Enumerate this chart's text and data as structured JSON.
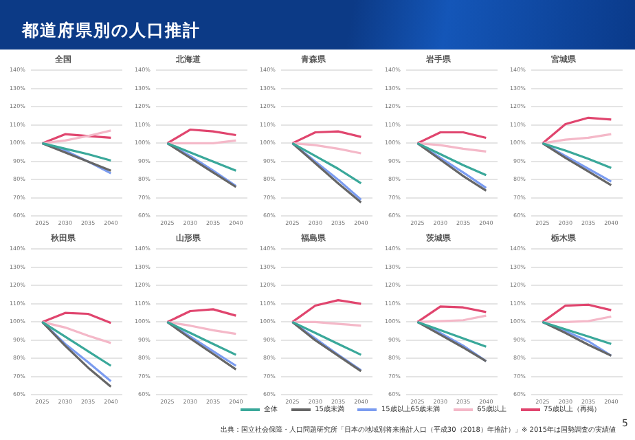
{
  "chart_data": [
    {
      "type": "line",
      "title": "全国",
      "annotations": [
        "都道府県別の人口推計",
        "出典：国立社会保障・人口問題研究所「日本の地域別将来推計人口（平成30（2018）年推計）」※ 2015年は国勢調査の実績値",
        "5"
      ],
      "legend": "bottom",
      "grid": "y",
      "marker": "none",
      "categories": [
        "2025",
        "2030",
        "2035",
        "2040"
      ],
      "ylim": [
        60,
        140
      ],
      "yticks": [
        {
          "value": 60,
          "label": "60%"
        },
        {
          "value": 70,
          "label": "70%"
        },
        {
          "value": 80,
          "label": "80%"
        },
        {
          "value": 90,
          "label": "90%"
        },
        {
          "value": 100,
          "label": "100%"
        },
        {
          "value": 110,
          "label": "110%"
        },
        {
          "value": 120,
          "label": "120%"
        },
        {
          "value": 130,
          "label": "130%"
        },
        {
          "value": 140,
          "label": "140%"
        }
      ],
      "series": [
        {
          "name": "全体",
          "color": "#3aa89a",
          "values": [
            100,
            97,
            94,
            90.5
          ]
        },
        {
          "name": "15歳未満",
          "color": "#666666",
          "values": [
            100,
            95,
            90,
            85
          ]
        },
        {
          "name": "15歳以上65歳未満",
          "color": "#7b9cf0",
          "values": [
            100,
            96,
            90,
            83.5
          ]
        },
        {
          "name": "65歳以上",
          "color": "#f4b8c8",
          "values": [
            100,
            101.5,
            104,
            107
          ]
        },
        {
          "name": "75歳以上（再掲）",
          "color": "#e0456e",
          "values": [
            100,
            105,
            104,
            103
          ]
        }
      ]
    },
    {
      "type": "line",
      "title": "北海道",
      "grid": "y",
      "marker": "none",
      "categories": [
        "2025",
        "2030",
        "2035",
        "2040"
      ],
      "ylim": [
        60,
        140
      ],
      "yticks": [
        {
          "value": 60,
          "label": "60%"
        },
        {
          "value": 70,
          "label": "70%"
        },
        {
          "value": 80,
          "label": "80%"
        },
        {
          "value": 90,
          "label": "90%"
        },
        {
          "value": 100,
          "label": "100%"
        },
        {
          "value": 110,
          "label": "110%"
        },
        {
          "value": 120,
          "label": "120%"
        },
        {
          "value": 130,
          "label": "130%"
        },
        {
          "value": 140,
          "label": "140%"
        }
      ],
      "series": [
        {
          "color": "#3aa89a",
          "values": [
            100,
            95,
            90,
            85
          ]
        },
        {
          "color": "#666666",
          "values": [
            100,
            92,
            84,
            76
          ]
        },
        {
          "color": "#7b9cf0",
          "values": [
            100,
            93,
            85,
            76.5
          ]
        },
        {
          "color": "#f4b8c8",
          "values": [
            100,
            100,
            100,
            101.5
          ]
        },
        {
          "color": "#e0456e",
          "values": [
            100,
            107.5,
            106.5,
            104.5
          ]
        }
      ]
    },
    {
      "type": "line",
      "title": "青森県",
      "grid": "y",
      "marker": "none",
      "categories": [
        "2025",
        "2030",
        "2035",
        "2040"
      ],
      "ylim": [
        60,
        140
      ],
      "yticks": [
        {
          "value": 60,
          "label": "60%"
        },
        {
          "value": 70,
          "label": "70%"
        },
        {
          "value": 80,
          "label": "80%"
        },
        {
          "value": 90,
          "label": "90%"
        },
        {
          "value": 100,
          "label": "100%"
        },
        {
          "value": 110,
          "label": "110%"
        },
        {
          "value": 120,
          "label": "120%"
        },
        {
          "value": 130,
          "label": "130%"
        },
        {
          "value": 140,
          "label": "140%"
        }
      ],
      "series": [
        {
          "color": "#3aa89a",
          "values": [
            100,
            93,
            86,
            78
          ]
        },
        {
          "color": "#666666",
          "values": [
            100,
            89,
            78,
            67.5
          ]
        },
        {
          "color": "#7b9cf0",
          "values": [
            100,
            90,
            80,
            69
          ]
        },
        {
          "color": "#f4b8c8",
          "values": [
            100,
            99,
            97,
            94.5
          ]
        },
        {
          "color": "#e0456e",
          "values": [
            100,
            106,
            106.5,
            103.5
          ]
        }
      ]
    },
    {
      "type": "line",
      "title": "岩手県",
      "grid": "y",
      "marker": "none",
      "categories": [
        "2025",
        "2030",
        "2035",
        "2040"
      ],
      "ylim": [
        60,
        140
      ],
      "yticks": [
        {
          "value": 60,
          "label": "60%"
        },
        {
          "value": 70,
          "label": "70%"
        },
        {
          "value": 80,
          "label": "80%"
        },
        {
          "value": 90,
          "label": "90%"
        },
        {
          "value": 100,
          "label": "100%"
        },
        {
          "value": 110,
          "label": "110%"
        },
        {
          "value": 120,
          "label": "120%"
        },
        {
          "value": 130,
          "label": "130%"
        },
        {
          "value": 140,
          "label": "140%"
        }
      ],
      "series": [
        {
          "color": "#3aa89a",
          "values": [
            100,
            94,
            88,
            82.5
          ]
        },
        {
          "color": "#666666",
          "values": [
            100,
            91,
            82,
            74
          ]
        },
        {
          "color": "#7b9cf0",
          "values": [
            100,
            92,
            84,
            75.5
          ]
        },
        {
          "color": "#f4b8c8",
          "values": [
            100,
            99,
            97,
            95.5
          ]
        },
        {
          "color": "#e0456e",
          "values": [
            100,
            106,
            106,
            103
          ]
        }
      ]
    },
    {
      "type": "line",
      "title": "宮城県",
      "grid": "y",
      "marker": "none",
      "categories": [
        "2025",
        "2030",
        "2035",
        "2040"
      ],
      "ylim": [
        60,
        140
      ],
      "yticks": [
        {
          "value": 60,
          "label": "60%"
        },
        {
          "value": 70,
          "label": "70%"
        },
        {
          "value": 80,
          "label": "80%"
        },
        {
          "value": 90,
          "label": "90%"
        },
        {
          "value": 100,
          "label": "100%"
        },
        {
          "value": 110,
          "label": "110%"
        },
        {
          "value": 120,
          "label": "120%"
        },
        {
          "value": 130,
          "label": "130%"
        },
        {
          "value": 140,
          "label": "140%"
        }
      ],
      "series": [
        {
          "color": "#3aa89a",
          "values": [
            100,
            96,
            91.5,
            86.5
          ]
        },
        {
          "color": "#666666",
          "values": [
            100,
            92,
            84.5,
            77
          ]
        },
        {
          "color": "#7b9cf0",
          "values": [
            100,
            93,
            86,
            79
          ]
        },
        {
          "color": "#f4b8c8",
          "values": [
            100,
            102,
            103,
            105
          ]
        },
        {
          "color": "#e0456e",
          "values": [
            100,
            110.5,
            114,
            113
          ]
        }
      ]
    },
    {
      "type": "line",
      "title": "秋田県",
      "grid": "y",
      "marker": "none",
      "categories": [
        "2025",
        "2030",
        "2035",
        "2040"
      ],
      "ylim": [
        60,
        140
      ],
      "yticks": [
        {
          "value": 60,
          "label": "60%"
        },
        {
          "value": 70,
          "label": "70%"
        },
        {
          "value": 80,
          "label": "80%"
        },
        {
          "value": 90,
          "label": "90%"
        },
        {
          "value": 100,
          "label": "100%"
        },
        {
          "value": 110,
          "label": "110%"
        },
        {
          "value": 120,
          "label": "120%"
        },
        {
          "value": 130,
          "label": "130%"
        },
        {
          "value": 140,
          "label": "140%"
        }
      ],
      "series": [
        {
          "color": "#3aa89a",
          "values": [
            100,
            92,
            84,
            76
          ]
        },
        {
          "color": "#666666",
          "values": [
            100,
            87,
            75,
            64.5
          ]
        },
        {
          "color": "#7b9cf0",
          "values": [
            100,
            88,
            78,
            67.5
          ]
        },
        {
          "color": "#f4b8c8",
          "values": [
            100,
            97,
            92.5,
            88.5
          ]
        },
        {
          "color": "#e0456e",
          "values": [
            100,
            105,
            104.5,
            99.5
          ]
        }
      ]
    },
    {
      "type": "line",
      "title": "山形県",
      "grid": "y",
      "marker": "none",
      "categories": [
        "2025",
        "2030",
        "2035",
        "2040"
      ],
      "ylim": [
        60,
        140
      ],
      "yticks": [
        {
          "value": 60,
          "label": "60%"
        },
        {
          "value": 70,
          "label": "70%"
        },
        {
          "value": 80,
          "label": "80%"
        },
        {
          "value": 90,
          "label": "90%"
        },
        {
          "value": 100,
          "label": "100%"
        },
        {
          "value": 110,
          "label": "110%"
        },
        {
          "value": 120,
          "label": "120%"
        },
        {
          "value": 130,
          "label": "130%"
        },
        {
          "value": 140,
          "label": "140%"
        }
      ],
      "series": [
        {
          "color": "#3aa89a",
          "values": [
            100,
            94,
            88,
            82
          ]
        },
        {
          "color": "#666666",
          "values": [
            100,
            91,
            82.5,
            74
          ]
        },
        {
          "color": "#7b9cf0",
          "values": [
            100,
            92,
            84,
            76
          ]
        },
        {
          "color": "#f4b8c8",
          "values": [
            100,
            98,
            95.5,
            93.5
          ]
        },
        {
          "color": "#e0456e",
          "values": [
            100,
            106,
            107,
            103.5
          ]
        }
      ]
    },
    {
      "type": "line",
      "title": "福島県",
      "grid": "y",
      "marker": "none",
      "categories": [
        "2025",
        "2030",
        "2035",
        "2040"
      ],
      "ylim": [
        60,
        140
      ],
      "yticks": [
        {
          "value": 60,
          "label": "60%"
        },
        {
          "value": 70,
          "label": "70%"
        },
        {
          "value": 80,
          "label": "80%"
        },
        {
          "value": 90,
          "label": "90%"
        },
        {
          "value": 100,
          "label": "100%"
        },
        {
          "value": 110,
          "label": "110%"
        },
        {
          "value": 120,
          "label": "120%"
        },
        {
          "value": 130,
          "label": "130%"
        },
        {
          "value": 140,
          "label": "140%"
        }
      ],
      "series": [
        {
          "color": "#3aa89a",
          "values": [
            100,
            94,
            88,
            82
          ]
        },
        {
          "color": "#666666",
          "values": [
            100,
            90,
            81.5,
            73
          ]
        },
        {
          "color": "#7b9cf0",
          "values": [
            100,
            91,
            82,
            73.5
          ]
        },
        {
          "color": "#f4b8c8",
          "values": [
            100,
            100,
            99,
            98
          ]
        },
        {
          "color": "#e0456e",
          "values": [
            100,
            109,
            112,
            110
          ]
        }
      ]
    },
    {
      "type": "line",
      "title": "茨城県",
      "grid": "y",
      "marker": "none",
      "categories": [
        "2025",
        "2030",
        "2035",
        "2040"
      ],
      "ylim": [
        60,
        140
      ],
      "yticks": [
        {
          "value": 60,
          "label": "60%"
        },
        {
          "value": 70,
          "label": "70%"
        },
        {
          "value": 80,
          "label": "80%"
        },
        {
          "value": 90,
          "label": "90%"
        },
        {
          "value": 100,
          "label": "100%"
        },
        {
          "value": 110,
          "label": "110%"
        },
        {
          "value": 120,
          "label": "120%"
        },
        {
          "value": 130,
          "label": "130%"
        },
        {
          "value": 140,
          "label": "140%"
        }
      ],
      "series": [
        {
          "color": "#3aa89a",
          "values": [
            100,
            95.5,
            91,
            86.5
          ]
        },
        {
          "color": "#666666",
          "values": [
            100,
            93,
            86,
            78.5
          ]
        },
        {
          "color": "#7b9cf0",
          "values": [
            100,
            94,
            87,
            78.5
          ]
        },
        {
          "color": "#f4b8c8",
          "values": [
            100,
            100.5,
            101,
            103.5
          ]
        },
        {
          "color": "#e0456e",
          "values": [
            100,
            108.5,
            108,
            105.5
          ]
        }
      ]
    },
    {
      "type": "line",
      "title": "栃木県",
      "grid": "y",
      "marker": "none",
      "categories": [
        "2025",
        "2030",
        "2035",
        "2040"
      ],
      "ylim": [
        60,
        140
      ],
      "yticks": [
        {
          "value": 60,
          "label": "60%"
        },
        {
          "value": 70,
          "label": "70%"
        },
        {
          "value": 80,
          "label": "80%"
        },
        {
          "value": 90,
          "label": "90%"
        },
        {
          "value": 100,
          "label": "100%"
        },
        {
          "value": 110,
          "label": "110%"
        },
        {
          "value": 120,
          "label": "120%"
        },
        {
          "value": 130,
          "label": "130%"
        },
        {
          "value": 140,
          "label": "140%"
        }
      ],
      "series": [
        {
          "color": "#3aa89a",
          "values": [
            100,
            96,
            92,
            88
          ]
        },
        {
          "color": "#666666",
          "values": [
            100,
            94,
            87.5,
            81.5
          ]
        },
        {
          "color": "#7b9cf0",
          "values": [
            100,
            95,
            89.5,
            81.5
          ]
        },
        {
          "color": "#f4b8c8",
          "values": [
            100,
            100,
            100.5,
            103
          ]
        },
        {
          "color": "#e0456e",
          "values": [
            100,
            109,
            109.5,
            106.5
          ]
        }
      ]
    }
  ]
}
